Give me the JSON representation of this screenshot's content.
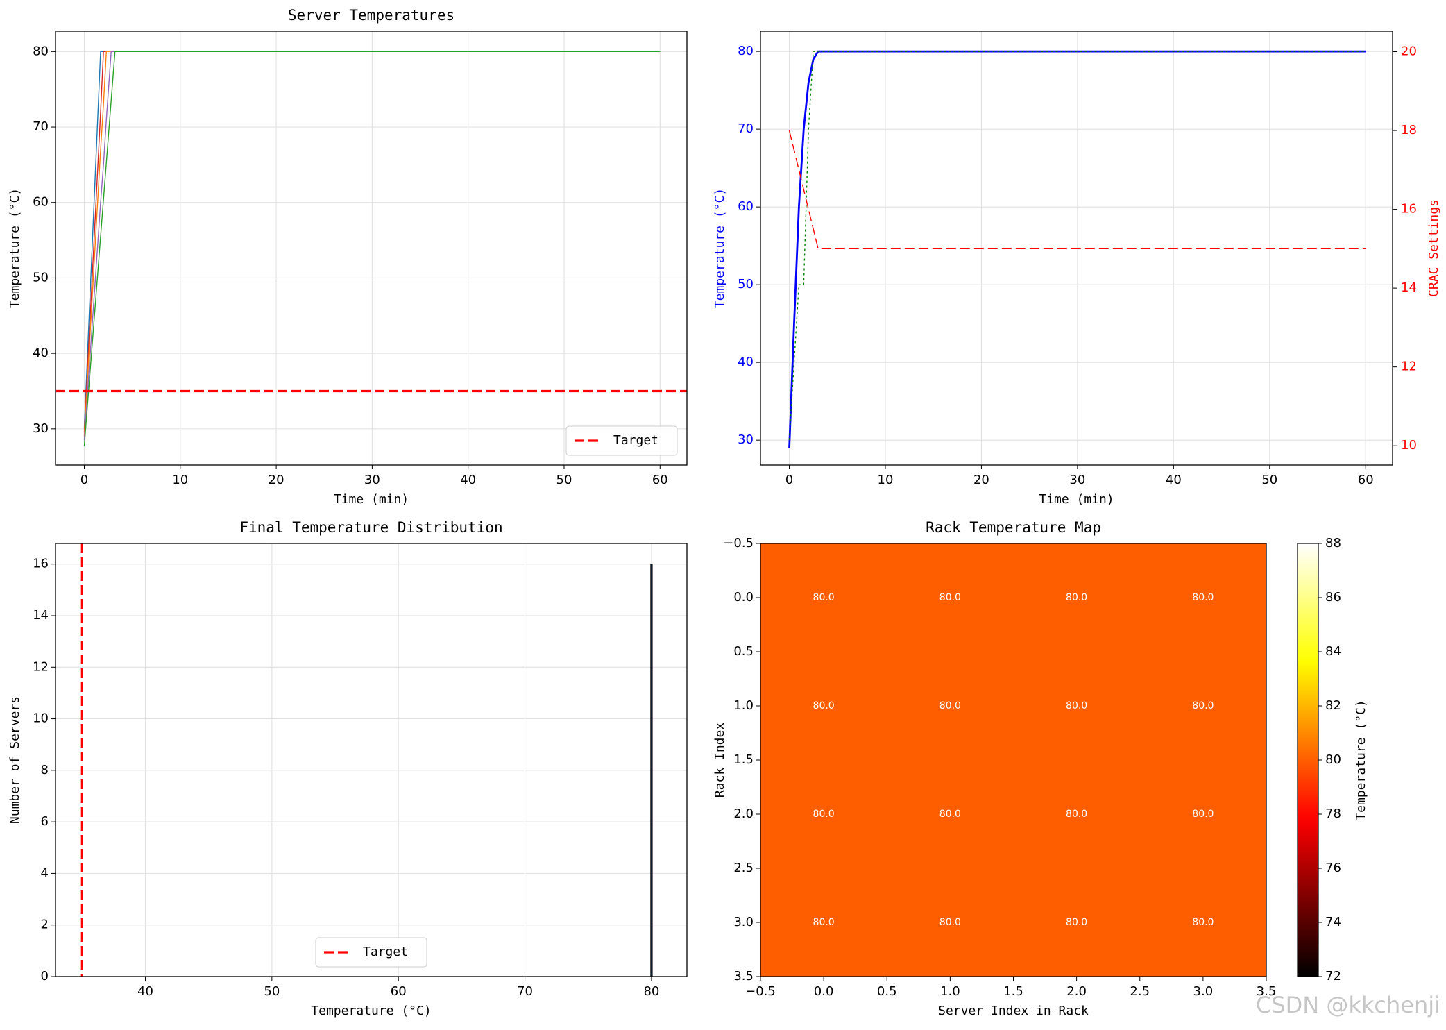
{
  "chart_data": [
    {
      "type": "line",
      "title": "Server Temperatures",
      "xlabel": "Time (min)",
      "ylabel": "Temperature (°C)",
      "x": [
        0,
        1.7,
        2.0,
        2.3,
        2.8,
        3.2,
        60
      ],
      "series": [
        {
          "color": "#1f77b4",
          "values": [
            30,
            80,
            80,
            80,
            80,
            80,
            80
          ]
        },
        {
          "color": "#d62728",
          "values": [
            29.5,
            72,
            80,
            80,
            80,
            80,
            80
          ]
        },
        {
          "color": "#ff7f0e",
          "values": [
            29,
            67,
            73,
            80,
            80,
            80,
            80
          ]
        },
        {
          "color": "#9467bd",
          "values": [
            28.5,
            60,
            65,
            71,
            80,
            80,
            80
          ]
        },
        {
          "color": "#2ca02c",
          "values": [
            27.7,
            55.5,
            60.4,
            65.3,
            73.5,
            80,
            80
          ]
        }
      ],
      "hlines": [
        {
          "name": "Target",
          "value": 35,
          "color": "#ff0000",
          "style": "dashed"
        }
      ],
      "xlim": [
        -3,
        62.8
      ],
      "xticks": [
        0,
        10,
        20,
        30,
        40,
        50,
        60
      ],
      "ylim": [
        25.2,
        82.7
      ],
      "yticks": [
        30,
        40,
        50,
        60,
        70,
        80
      ],
      "grid": true,
      "legend": "lower right"
    },
    {
      "type": "line",
      "xlabel": "Time (min)",
      "ylabel": "Temperature (°C)",
      "y2label": "CRAC Settings",
      "ycolor": "#0000ff",
      "y2color": "#ff0000",
      "x": [
        0,
        0.5,
        1,
        1.5,
        2,
        2.5,
        3,
        60
      ],
      "series": [
        {
          "color": "#0000ff",
          "style": "solid",
          "width": 2,
          "values": [
            29,
            45,
            60,
            70,
            76,
            79,
            80,
            80
          ]
        },
        {
          "color": "#008000",
          "style": "dotted",
          "values": [
            30,
            40,
            50,
            50,
            70,
            80,
            80,
            80
          ]
        },
        {
          "color": "#ff0000",
          "style": "dashed",
          "axis": "y2",
          "values": [
            18,
            17.5,
            17,
            16.5,
            16,
            15.5,
            15,
            15
          ]
        }
      ],
      "xlim": [
        -3,
        62.8
      ],
      "xticks": [
        0,
        10,
        20,
        30,
        40,
        50,
        60
      ],
      "ylim": [
        26.8,
        82.6
      ],
      "yticks": [
        30,
        40,
        50,
        60,
        70,
        80
      ],
      "y2lim": [
        9.51,
        20.52
      ],
      "y2ticks": [
        10,
        12,
        14,
        16,
        18,
        20
      ],
      "grid": true
    },
    {
      "type": "histogram",
      "title": "Final Temperature Distribution",
      "xlabel": "Temperature (°C)",
      "ylabel": "Number of Servers",
      "bins": [
        79.95,
        80.05
      ],
      "counts": [
        16
      ],
      "color": "#1f77b4",
      "edgecolor": "#000000",
      "vlines": [
        {
          "name": "Target",
          "value": 35,
          "color": "#ff0000",
          "style": "dashed"
        }
      ],
      "xlim": [
        32.9,
        82.8
      ],
      "xticks": [
        40,
        50,
        60,
        70,
        80
      ],
      "ylim": [
        0,
        16.8
      ],
      "yticks": [
        0,
        2,
        4,
        6,
        8,
        10,
        12,
        14,
        16
      ],
      "grid": true,
      "legend": "lower center"
    },
    {
      "type": "heatmap",
      "title": "Rack Temperature Map",
      "xlabel": "Server Index in Rack",
      "ylabel": "Rack Index",
      "values": [
        [
          80,
          80,
          80,
          80
        ],
        [
          80,
          80,
          80,
          80
        ],
        [
          80,
          80,
          80,
          80
        ],
        [
          80,
          80,
          80,
          80
        ]
      ],
      "value_labels": [
        [
          "80.0",
          "80.0",
          "80.0",
          "80.0"
        ],
        [
          "80.0",
          "80.0",
          "80.0",
          "80.0"
        ],
        [
          "80.0",
          "80.0",
          "80.0",
          "80.0"
        ],
        [
          "80.0",
          "80.0",
          "80.0",
          "80.0"
        ]
      ],
      "cmap": "hot",
      "clim": [
        72,
        88
      ],
      "cbar_ticks": [
        72,
        74,
        76,
        78,
        80,
        82,
        84,
        86,
        88
      ],
      "cbar_label": "Temperature (°C)",
      "xlim": [
        -0.5,
        3.5
      ],
      "xticks": [
        {
          "value": -0.5,
          "label": "−0.5"
        },
        {
          "value": 0,
          "label": "0.0"
        },
        0.5,
        {
          "value": 1,
          "label": "1.0"
        },
        1.5,
        {
          "value": 2,
          "label": "2.0"
        },
        2.5,
        {
          "value": 3,
          "label": "3.0"
        },
        3.5
      ],
      "ylim": [
        3.5,
        -0.5
      ],
      "yticks": [
        {
          "value": -0.5,
          "label": "−0.5"
        },
        {
          "value": 0,
          "label": "0.0"
        },
        0.5,
        {
          "value": 1,
          "label": "1.0"
        },
        1.5,
        {
          "value": 2,
          "label": "2.0"
        },
        2.5,
        {
          "value": 3,
          "label": "3.0"
        },
        3.5
      ]
    }
  ],
  "watermark": "CSDN @kkchenji"
}
